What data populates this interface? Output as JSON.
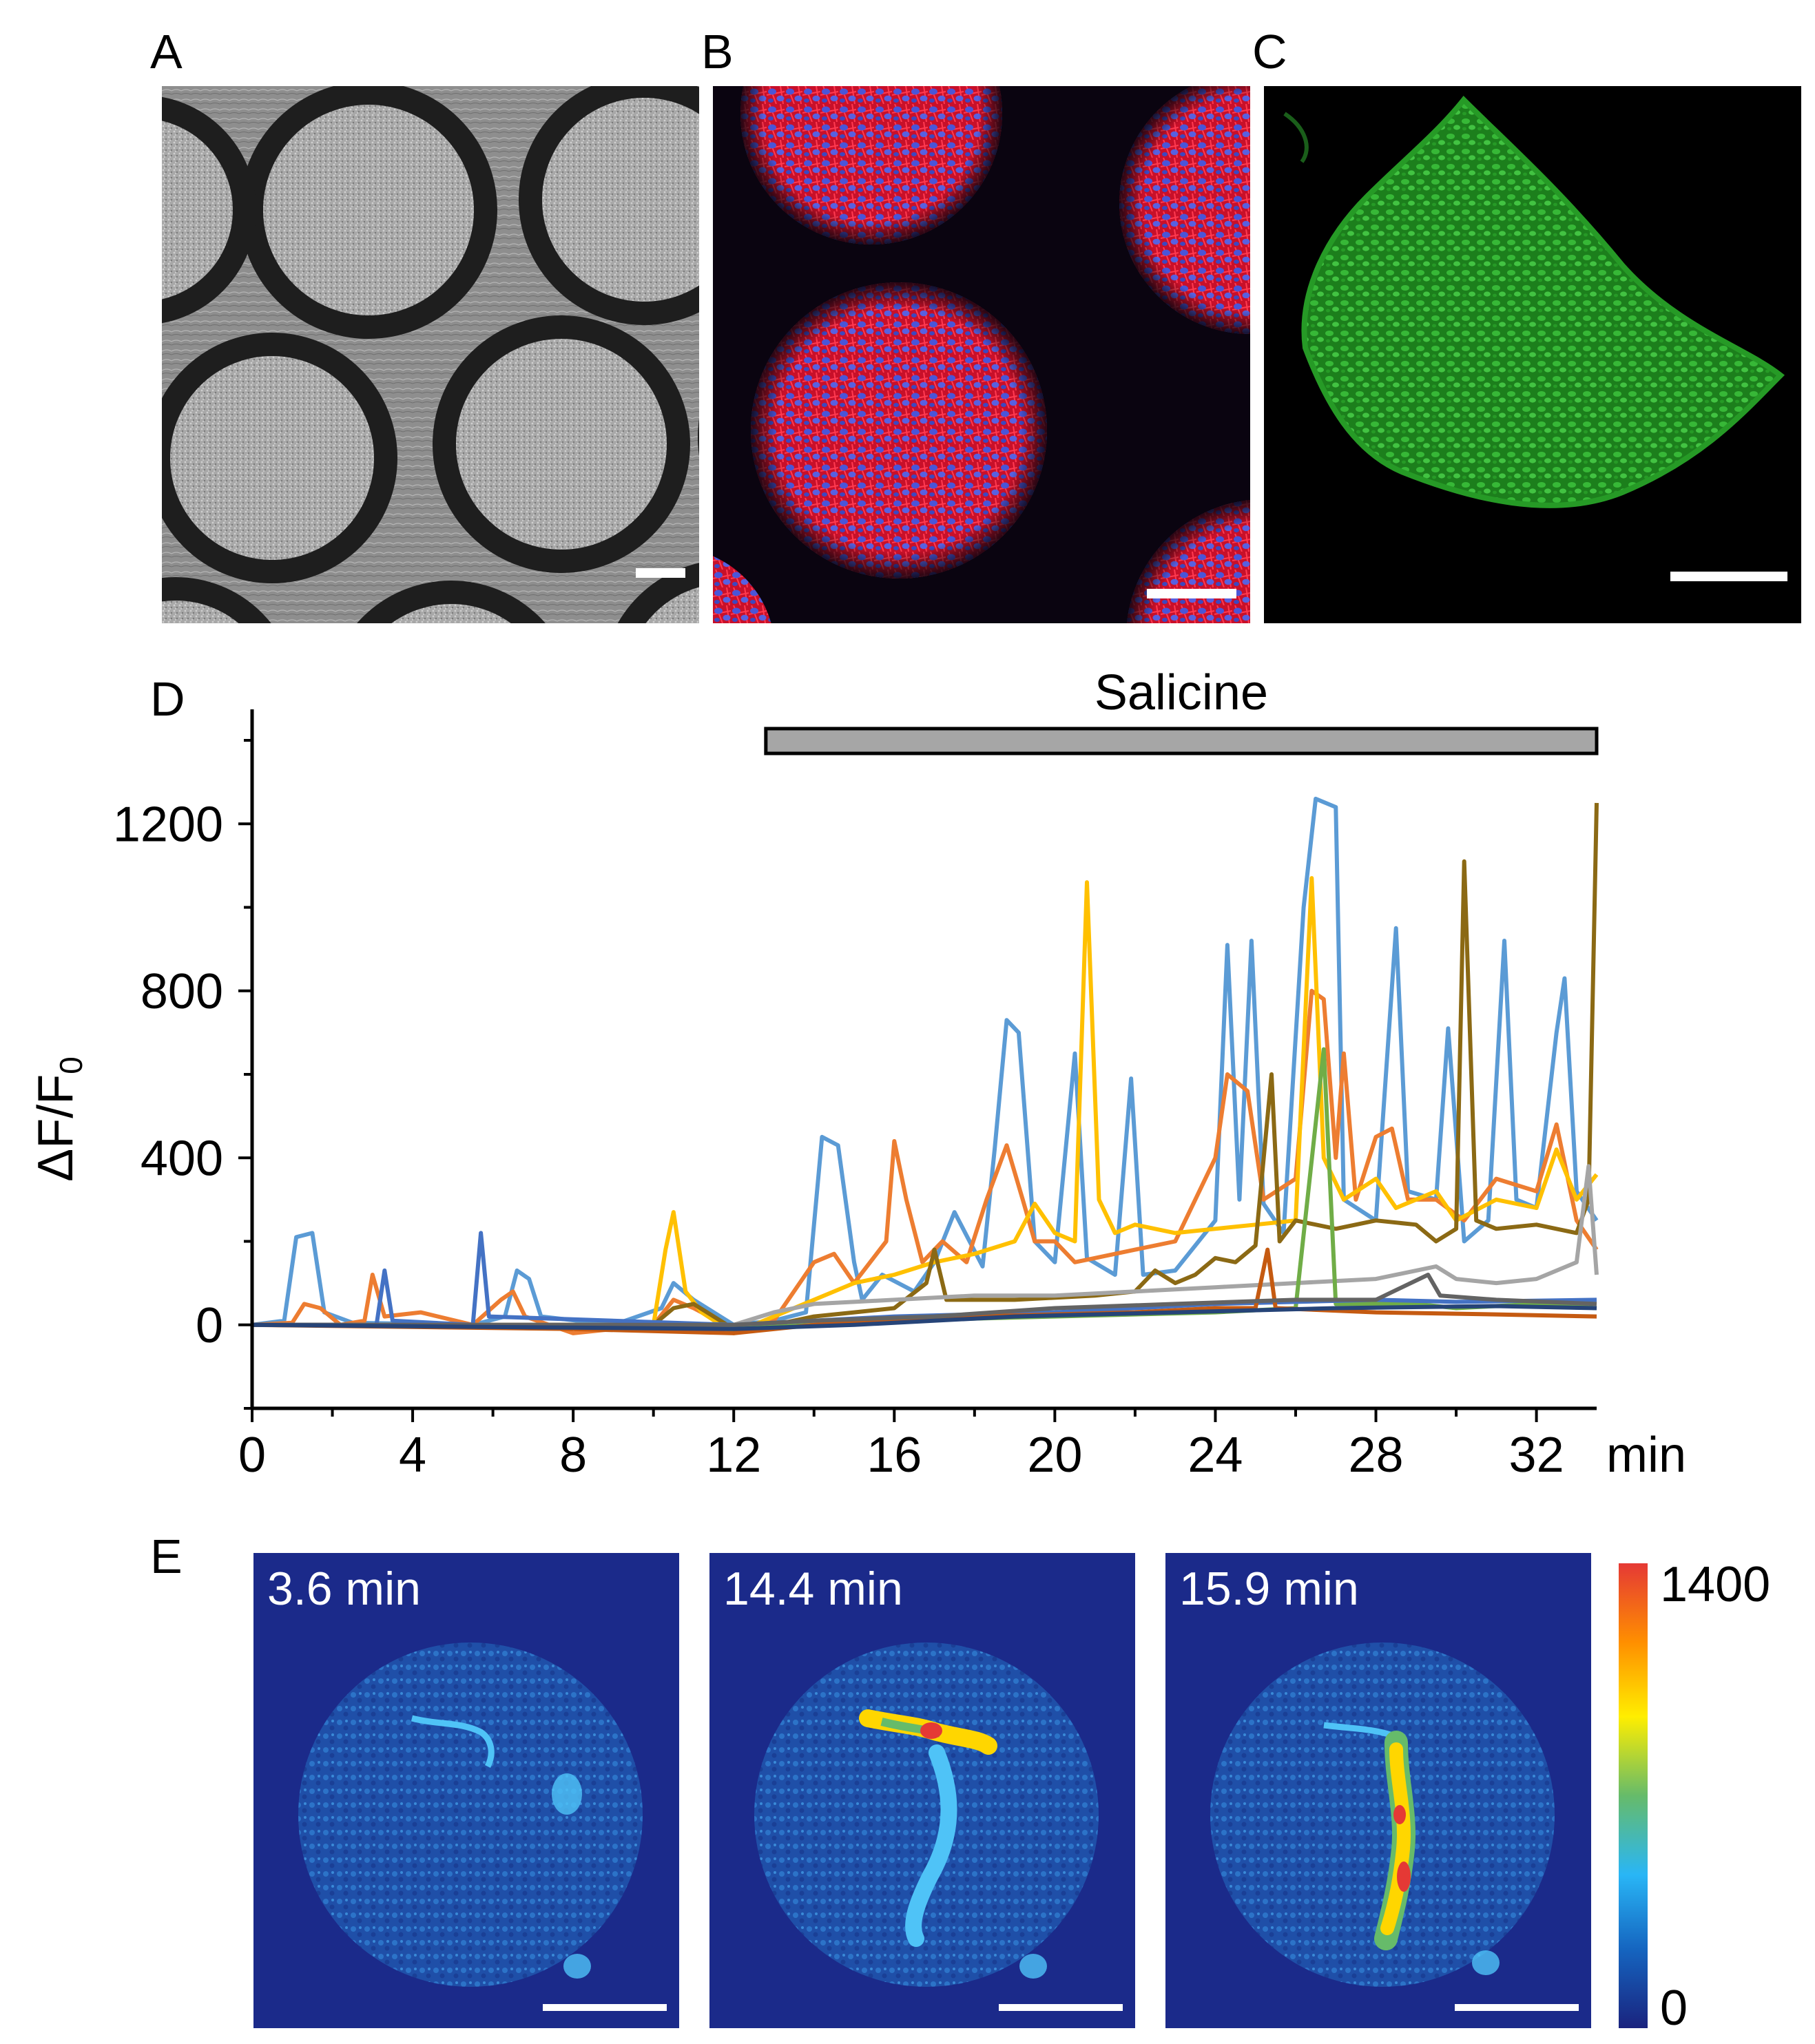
{
  "panels": {
    "A": {
      "letter": "A"
    },
    "B": {
      "letter": "B"
    },
    "C": {
      "letter": "C"
    },
    "D": {
      "letter": "D"
    },
    "E": {
      "letter": "E"
    }
  },
  "images": {
    "A": {
      "kind": "phase-contrast micrograph",
      "colors": {
        "well_ring": "#1e1e1e",
        "background": "#9a9a9a"
      }
    },
    "B": {
      "kind": "fluorescence micrograph",
      "colors": {
        "stain_1": "#e8122c",
        "stain_2": "#4a55d8",
        "background": "#0a0410"
      }
    },
    "C": {
      "kind": "fluorescence micrograph",
      "colors": {
        "stain": "#3cc83c",
        "background": "#000000"
      }
    }
  },
  "panelE": {
    "timestamps": [
      "3.6 min",
      "14.4 min",
      "15.9 min"
    ],
    "colorbar": {
      "max_label": "1400",
      "min_label": "0",
      "max": 1400,
      "min": 0,
      "colors": [
        "#1a237e",
        "#1565c0",
        "#29b6f6",
        "#66bb6a",
        "#ffee00",
        "#ff8f00",
        "#e53935"
      ]
    }
  },
  "chart_data": {
    "type": "line",
    "title": "",
    "xlabel": "min",
    "ylabel": "ΔF/F",
    "ylabel_subscript": "0",
    "xlim": [
      0,
      33.5
    ],
    "ylim": [
      -200,
      1400
    ],
    "xticks": [
      0,
      4,
      8,
      12,
      16,
      20,
      24,
      28,
      32
    ],
    "xtick_labels": [
      "0",
      "4",
      "8",
      "12",
      "16",
      "20",
      "24",
      "28",
      "32"
    ],
    "yticks": [
      0,
      400,
      800,
      1200
    ],
    "ytick_labels": [
      "0",
      "400",
      "800",
      "1200"
    ],
    "grid": false,
    "legend": "none",
    "annotation": {
      "label": "Salicine",
      "x_start": 12.8,
      "x_end": 33.5
    },
    "series": [
      {
        "color": "#5b9bd5",
        "points": [
          [
            0,
            0
          ],
          [
            0.8,
            10
          ],
          [
            1.1,
            210
          ],
          [
            1.5,
            220
          ],
          [
            1.8,
            30
          ],
          [
            2.5,
            5
          ],
          [
            5.5,
            0
          ],
          [
            6.3,
            20
          ],
          [
            6.6,
            130
          ],
          [
            6.9,
            110
          ],
          [
            7.2,
            20
          ],
          [
            9,
            0
          ],
          [
            10.2,
            40
          ],
          [
            10.5,
            100
          ],
          [
            11,
            60
          ],
          [
            12,
            0
          ],
          [
            13,
            10
          ],
          [
            13.8,
            30
          ],
          [
            14.2,
            450
          ],
          [
            14.6,
            430
          ],
          [
            15,
            150
          ],
          [
            15.2,
            60
          ],
          [
            15.7,
            120
          ],
          [
            16.5,
            80
          ],
          [
            17,
            150
          ],
          [
            17.5,
            270
          ],
          [
            18.2,
            140
          ],
          [
            18.5,
            420
          ],
          [
            18.8,
            730
          ],
          [
            19.1,
            700
          ],
          [
            19.5,
            200
          ],
          [
            20,
            150
          ],
          [
            20.5,
            650
          ],
          [
            20.8,
            160
          ],
          [
            21.5,
            120
          ],
          [
            21.9,
            590
          ],
          [
            22.2,
            120
          ],
          [
            23,
            130
          ],
          [
            24,
            250
          ],
          [
            24.3,
            910
          ],
          [
            24.6,
            300
          ],
          [
            24.9,
            920
          ],
          [
            25.2,
            290
          ],
          [
            25.7,
            220
          ],
          [
            26.2,
            1000
          ],
          [
            26.5,
            1260
          ],
          [
            27,
            1240
          ],
          [
            27.2,
            300
          ],
          [
            28,
            250
          ],
          [
            28.5,
            950
          ],
          [
            28.8,
            320
          ],
          [
            29.5,
            300
          ],
          [
            29.8,
            710
          ],
          [
            30.2,
            200
          ],
          [
            30.8,
            250
          ],
          [
            31.2,
            920
          ],
          [
            31.5,
            300
          ],
          [
            32,
            280
          ],
          [
            32.5,
            700
          ],
          [
            32.7,
            830
          ],
          [
            33,
            320
          ],
          [
            33.5,
            250
          ]
        ]
      },
      {
        "color": "#ed7d31",
        "points": [
          [
            0,
            0
          ],
          [
            1,
            5
          ],
          [
            1.3,
            50
          ],
          [
            1.7,
            40
          ],
          [
            2.2,
            0
          ],
          [
            2.8,
            10
          ],
          [
            3,
            120
          ],
          [
            3.3,
            20
          ],
          [
            4.2,
            30
          ],
          [
            5.5,
            0
          ],
          [
            6.2,
            60
          ],
          [
            6.5,
            80
          ],
          [
            6.8,
            20
          ],
          [
            8,
            -20
          ],
          [
            10,
            0
          ],
          [
            10.5,
            60
          ],
          [
            11,
            40
          ],
          [
            12,
            -10
          ],
          [
            13,
            10
          ],
          [
            14,
            150
          ],
          [
            14.5,
            170
          ],
          [
            15,
            100
          ],
          [
            15.8,
            200
          ],
          [
            16,
            440
          ],
          [
            16.3,
            300
          ],
          [
            16.7,
            150
          ],
          [
            17.2,
            200
          ],
          [
            17.8,
            150
          ],
          [
            18.3,
            300
          ],
          [
            18.8,
            430
          ],
          [
            19.2,
            300
          ],
          [
            19.5,
            200
          ],
          [
            20,
            200
          ],
          [
            20.5,
            150
          ],
          [
            21,
            160
          ],
          [
            22,
            180
          ],
          [
            23,
            200
          ],
          [
            23.5,
            300
          ],
          [
            24,
            400
          ],
          [
            24.3,
            600
          ],
          [
            24.8,
            560
          ],
          [
            25.2,
            300
          ],
          [
            26,
            350
          ],
          [
            26.4,
            800
          ],
          [
            26.7,
            780
          ],
          [
            27,
            400
          ],
          [
            27.2,
            650
          ],
          [
            27.5,
            300
          ],
          [
            28,
            450
          ],
          [
            28.4,
            470
          ],
          [
            28.8,
            300
          ],
          [
            29.5,
            300
          ],
          [
            30.2,
            250
          ],
          [
            31,
            350
          ],
          [
            32,
            320
          ],
          [
            32.5,
            480
          ],
          [
            33,
            250
          ],
          [
            33.5,
            180
          ]
        ]
      },
      {
        "color": "#ffc000",
        "points": [
          [
            0,
            0
          ],
          [
            10,
            0
          ],
          [
            10.3,
            180
          ],
          [
            10.5,
            270
          ],
          [
            10.8,
            80
          ],
          [
            11.2,
            30
          ],
          [
            12,
            -20
          ],
          [
            13,
            20
          ],
          [
            14,
            60
          ],
          [
            15,
            100
          ],
          [
            16,
            120
          ],
          [
            17,
            150
          ],
          [
            18,
            170
          ],
          [
            19,
            200
          ],
          [
            19.5,
            290
          ],
          [
            20,
            220
          ],
          [
            20.5,
            200
          ],
          [
            20.8,
            1060
          ],
          [
            21.1,
            300
          ],
          [
            21.5,
            220
          ],
          [
            22,
            240
          ],
          [
            23,
            220
          ],
          [
            24,
            230
          ],
          [
            25,
            240
          ],
          [
            26,
            250
          ],
          [
            26.4,
            1070
          ],
          [
            26.7,
            400
          ],
          [
            27.2,
            300
          ],
          [
            28,
            350
          ],
          [
            28.5,
            280
          ],
          [
            29.5,
            320
          ],
          [
            30,
            250
          ],
          [
            31,
            300
          ],
          [
            32,
            280
          ],
          [
            32.5,
            420
          ],
          [
            33,
            300
          ],
          [
            33.5,
            360
          ]
        ]
      },
      {
        "color": "#8b6914",
        "points": [
          [
            0,
            0
          ],
          [
            10,
            0
          ],
          [
            10.5,
            40
          ],
          [
            11,
            50
          ],
          [
            12,
            -10
          ],
          [
            13,
            0
          ],
          [
            14,
            20
          ],
          [
            15,
            30
          ],
          [
            16,
            40
          ],
          [
            16.8,
            100
          ],
          [
            17,
            180
          ],
          [
            17.3,
            60
          ],
          [
            19,
            60
          ],
          [
            21,
            70
          ],
          [
            22,
            80
          ],
          [
            22.5,
            130
          ],
          [
            23,
            100
          ],
          [
            23.5,
            120
          ],
          [
            24,
            160
          ],
          [
            24.5,
            150
          ],
          [
            25,
            190
          ],
          [
            25.4,
            600
          ],
          [
            25.6,
            200
          ],
          [
            26,
            250
          ],
          [
            27,
            230
          ],
          [
            28,
            250
          ],
          [
            29,
            240
          ],
          [
            29.5,
            200
          ],
          [
            30,
            230
          ],
          [
            30.2,
            1110
          ],
          [
            30.5,
            250
          ],
          [
            31,
            230
          ],
          [
            32,
            240
          ],
          [
            33,
            220
          ],
          [
            33.3,
            300
          ],
          [
            33.5,
            1250
          ]
        ]
      },
      {
        "color": "#a5a5a5",
        "points": [
          [
            0,
            0
          ],
          [
            12,
            0
          ],
          [
            13,
            30
          ],
          [
            14,
            50
          ],
          [
            16,
            60
          ],
          [
            18,
            70
          ],
          [
            20,
            70
          ],
          [
            22,
            80
          ],
          [
            24,
            90
          ],
          [
            26,
            100
          ],
          [
            28,
            110
          ],
          [
            29.5,
            140
          ],
          [
            30,
            110
          ],
          [
            31,
            100
          ],
          [
            32,
            110
          ],
          [
            33,
            150
          ],
          [
            33.3,
            380
          ],
          [
            33.5,
            120
          ]
        ]
      },
      {
        "color": "#70ad47",
        "points": [
          [
            0,
            0
          ],
          [
            12,
            -10
          ],
          [
            13,
            -5
          ],
          [
            16,
            10
          ],
          [
            20,
            20
          ],
          [
            24,
            30
          ],
          [
            26,
            40
          ],
          [
            26.7,
            660
          ],
          [
            27,
            50
          ],
          [
            29,
            50
          ],
          [
            30,
            40
          ],
          [
            32,
            50
          ],
          [
            33.5,
            40
          ]
        ]
      },
      {
        "color": "#4472c4",
        "points": [
          [
            0,
            0
          ],
          [
            3.1,
            0
          ],
          [
            3.3,
            130
          ],
          [
            3.5,
            10
          ],
          [
            5.5,
            0
          ],
          [
            5.7,
            220
          ],
          [
            5.9,
            20
          ],
          [
            12,
            0
          ],
          [
            16,
            20
          ],
          [
            20,
            30
          ],
          [
            24,
            50
          ],
          [
            28,
            60
          ],
          [
            30,
            55
          ],
          [
            33.5,
            60
          ]
        ]
      },
      {
        "color": "#c55a11",
        "points": [
          [
            0,
            0
          ],
          [
            8,
            -10
          ],
          [
            12,
            -20
          ],
          [
            14,
            0
          ],
          [
            18,
            20
          ],
          [
            22,
            30
          ],
          [
            24,
            40
          ],
          [
            25,
            40
          ],
          [
            25.3,
            180
          ],
          [
            25.5,
            40
          ],
          [
            28,
            30
          ],
          [
            31,
            25
          ],
          [
            33.5,
            20
          ]
        ]
      },
      {
        "color": "#636363",
        "points": [
          [
            0,
            0
          ],
          [
            12,
            0
          ],
          [
            14,
            10
          ],
          [
            17,
            20
          ],
          [
            20,
            40
          ],
          [
            23,
            50
          ],
          [
            26,
            60
          ],
          [
            28,
            60
          ],
          [
            29.3,
            120
          ],
          [
            29.6,
            70
          ],
          [
            31,
            60
          ],
          [
            33.5,
            50
          ]
        ]
      },
      {
        "color": "#264478",
        "points": [
          [
            0,
            0
          ],
          [
            12,
            -10
          ],
          [
            15,
            0
          ],
          [
            19,
            20
          ],
          [
            23,
            30
          ],
          [
            27,
            40
          ],
          [
            31,
            45
          ],
          [
            33.5,
            40
          ]
        ]
      }
    ]
  }
}
